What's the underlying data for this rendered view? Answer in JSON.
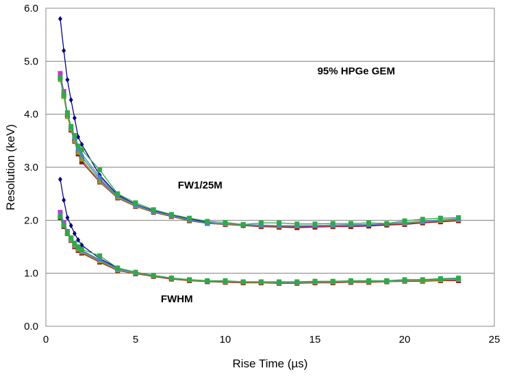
{
  "chart_data": {
    "type": "line",
    "title": "",
    "xlabel": "Rise Time (µs)",
    "ylabel": "Resolution (keV)",
    "xlim": [
      0,
      25
    ],
    "ylim": [
      0,
      6
    ],
    "x_ticks": [
      "0",
      "5",
      "10",
      "15",
      "20",
      "25"
    ],
    "y_ticks": [
      "0.0",
      "1.0",
      "2.0",
      "3.0",
      "4.0",
      "5.0",
      "6.0"
    ],
    "grid": "horizontal",
    "legend": "none",
    "annotations": [
      {
        "text": "95% HPGe GEM",
        "x": 17.3,
        "y": 4.75
      },
      {
        "text": "FW1/25M",
        "x": 8.6,
        "y": 2.6
      },
      {
        "text": "FWHM",
        "x": 7.3,
        "y": 0.45
      }
    ],
    "x": [
      0.8,
      1.0,
      1.2,
      1.4,
      1.6,
      1.8,
      2.0,
      3.0,
      4.0,
      5.0,
      6.0,
      7.0,
      8.0,
      9.0,
      10.0,
      11.0,
      12.0,
      13.0,
      14.0,
      15.0,
      16.0,
      17.0,
      18.0,
      19.0,
      20.0,
      21.0,
      22.0,
      23.0
    ],
    "series": [
      {
        "color": "#000080",
        "marker": "diamond",
        "values": [
          5.8,
          5.2,
          4.65,
          4.27,
          3.93,
          3.57,
          3.43,
          2.85,
          2.48,
          2.3,
          2.18,
          2.1,
          2.03,
          1.96,
          1.93,
          1.9,
          1.9,
          1.88,
          1.88,
          1.88,
          1.89,
          1.89,
          1.9,
          1.91,
          1.93,
          1.97,
          1.99,
          2.01
        ]
      },
      {
        "color": "#000080",
        "marker": "diamond",
        "values": [
          2.77,
          2.38,
          2.05,
          1.9,
          1.75,
          1.63,
          1.53,
          1.28,
          1.1,
          1.02,
          0.96,
          0.91,
          0.87,
          0.85,
          0.84,
          0.83,
          0.83,
          0.82,
          0.82,
          0.82,
          0.83,
          0.83,
          0.84,
          0.85,
          0.86,
          0.86,
          0.87,
          0.88
        ]
      },
      {
        "color": "#cc33cc",
        "marker": "square",
        "values": [
          4.77,
          4.43,
          4.02,
          3.74,
          3.52,
          3.3,
          3.13,
          2.75,
          2.45,
          2.28,
          2.17,
          2.09,
          2.0,
          1.95,
          1.93,
          1.91,
          1.89,
          1.87,
          1.87,
          1.88,
          1.89,
          1.89,
          1.91,
          1.92,
          1.93,
          1.96,
          1.98,
          2.0
        ]
      },
      {
        "color": "#cc33cc",
        "marker": "square",
        "values": [
          2.15,
          1.96,
          1.79,
          1.65,
          1.53,
          1.46,
          1.41,
          1.24,
          1.06,
          1.0,
          0.95,
          0.9,
          0.87,
          0.85,
          0.84,
          0.83,
          0.83,
          0.82,
          0.82,
          0.83,
          0.83,
          0.83,
          0.84,
          0.85,
          0.86,
          0.86,
          0.87,
          0.87
        ]
      },
      {
        "color": "#8b1a1a",
        "marker": "square",
        "values": [
          4.68,
          4.35,
          3.98,
          3.7,
          3.49,
          3.25,
          3.1,
          2.72,
          2.42,
          2.26,
          2.15,
          2.07,
          1.99,
          1.94,
          1.92,
          1.9,
          1.88,
          1.87,
          1.86,
          1.87,
          1.88,
          1.88,
          1.89,
          1.91,
          1.92,
          1.95,
          1.97,
          1.99
        ]
      },
      {
        "color": "#8b1a1a",
        "marker": "square",
        "values": [
          2.05,
          1.88,
          1.75,
          1.62,
          1.5,
          1.43,
          1.38,
          1.21,
          1.05,
          0.99,
          0.94,
          0.89,
          0.86,
          0.84,
          0.83,
          0.82,
          0.82,
          0.81,
          0.81,
          0.82,
          0.82,
          0.83,
          0.83,
          0.84,
          0.85,
          0.85,
          0.86,
          0.86
        ]
      },
      {
        "color": "#2e8b8b",
        "marker": "triangle",
        "values": [
          4.72,
          4.4,
          4.0,
          3.73,
          3.55,
          3.32,
          3.2,
          2.78,
          2.44,
          2.27,
          2.16,
          2.08,
          2.0,
          1.94,
          1.93,
          1.91,
          1.9,
          1.89,
          1.9,
          1.9,
          1.91,
          1.91,
          1.92,
          1.93,
          1.95,
          1.97,
          2.0,
          2.02
        ]
      },
      {
        "color": "#2e8b8b",
        "marker": "triangle",
        "values": [
          2.1,
          1.92,
          1.77,
          1.64,
          1.55,
          1.47,
          1.42,
          1.25,
          1.07,
          1.01,
          0.95,
          0.91,
          0.87,
          0.85,
          0.84,
          0.83,
          0.83,
          0.82,
          0.83,
          0.83,
          0.84,
          0.84,
          0.85,
          0.85,
          0.86,
          0.87,
          0.88,
          0.89
        ]
      },
      {
        "color": "#9a9a2a",
        "marker": "triangle",
        "values": [
          4.65,
          4.33,
          3.95,
          3.72,
          3.5,
          3.28,
          3.15,
          2.73,
          2.43,
          2.27,
          2.16,
          2.08,
          2.0,
          1.95,
          1.93,
          1.91,
          1.9,
          1.89,
          1.89,
          1.9,
          1.9,
          1.91,
          1.92,
          1.93,
          1.94,
          1.97,
          1.99,
          2.01
        ]
      },
      {
        "color": "#9a9a2a",
        "marker": "triangle",
        "values": [
          2.08,
          1.9,
          1.76,
          1.63,
          1.52,
          1.45,
          1.4,
          1.23,
          1.06,
          1.0,
          0.95,
          0.9,
          0.87,
          0.85,
          0.84,
          0.83,
          0.83,
          0.82,
          0.82,
          0.83,
          0.83,
          0.84,
          0.84,
          0.85,
          0.86,
          0.86,
          0.87,
          0.88
        ]
      },
      {
        "color": "#4a86c8",
        "marker": "triangle",
        "values": [
          4.7,
          4.38,
          4.01,
          3.76,
          3.57,
          3.35,
          3.25,
          2.82,
          2.46,
          2.29,
          2.17,
          2.09,
          2.01,
          1.95,
          1.94,
          1.92,
          1.91,
          1.9,
          1.9,
          1.9,
          1.91,
          1.92,
          1.92,
          1.93,
          1.96,
          1.98,
          2.01,
          2.03
        ]
      },
      {
        "color": "#4a86c8",
        "marker": "triangle",
        "values": [
          2.12,
          1.93,
          1.78,
          1.66,
          1.55,
          1.48,
          1.43,
          1.26,
          1.08,
          1.01,
          0.96,
          0.91,
          0.88,
          0.86,
          0.85,
          0.84,
          0.84,
          0.83,
          0.83,
          0.84,
          0.84,
          0.85,
          0.85,
          0.86,
          0.87,
          0.88,
          0.89,
          0.9
        ]
      },
      {
        "color": "#2eaa4a",
        "marker": "square",
        "values": [
          4.68,
          4.37,
          4.03,
          3.77,
          3.6,
          3.4,
          3.33,
          2.95,
          2.5,
          2.33,
          2.2,
          2.11,
          2.04,
          1.98,
          1.96,
          1.92,
          1.95,
          1.95,
          1.93,
          1.93,
          1.94,
          1.94,
          1.95,
          1.94,
          1.99,
          2.02,
          2.04,
          2.05
        ]
      },
      {
        "color": "#2eaa4a",
        "marker": "square",
        "values": [
          2.07,
          1.9,
          1.77,
          1.67,
          1.57,
          1.5,
          1.45,
          1.33,
          1.1,
          1.02,
          0.96,
          0.91,
          0.88,
          0.86,
          0.86,
          0.84,
          0.84,
          0.84,
          0.84,
          0.85,
          0.85,
          0.86,
          0.86,
          0.86,
          0.88,
          0.88,
          0.9,
          0.91
        ]
      }
    ]
  }
}
